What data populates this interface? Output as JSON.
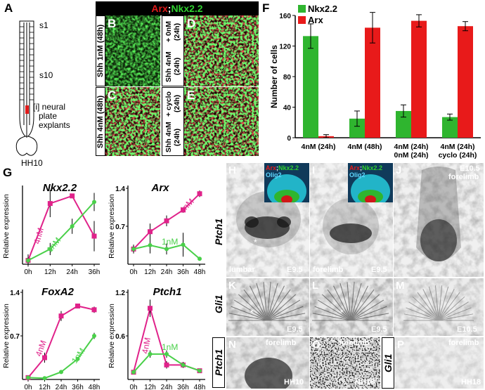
{
  "panel_letters": {
    "A": "A",
    "B": "B",
    "C": "C",
    "D": "D",
    "E": "E",
    "F": "F",
    "G": "G",
    "H": "H",
    "I": "I",
    "J": "J",
    "K": "K",
    "L": "L",
    "M": "M",
    "N": "N",
    "O": "O",
    "P": "P"
  },
  "panelA": {
    "s1": "s1",
    "s10": "s10",
    "explant_line1": "[i] neural",
    "explant_line2": "plate",
    "explant_line3": "explants",
    "stage": "HH10"
  },
  "header": {
    "arx": "Arx",
    "sep": ";",
    "nkx": "Nkx2.2"
  },
  "micro_labels": {
    "B": "Shh 1nM (48h)",
    "C": "Shh 4nM (48h)",
    "D_line1": "Shh 4nM (24h)",
    "D_line2": "+ 0nM (24h)",
    "E_line1": "Shh 4nM (24h)",
    "E_line2": "+ cyclo (24h)"
  },
  "chart_data": [
    {
      "type": "bar",
      "panel": "F",
      "categories": [
        "4nM (24h)",
        "4nM (48h)",
        "4nM (24h) 0nM (24h)",
        "4nM (24h) cyclo (24h)"
      ],
      "category_lines": [
        [
          "4nM (24h)"
        ],
        [
          "4nM (48h)"
        ],
        [
          "4nM (24h)",
          "0nM (24h)"
        ],
        [
          "4nM (24h)",
          "cyclo (24h)"
        ]
      ],
      "series": [
        {
          "name": "Nkx2.2",
          "color": "#2fb52f",
          "values": [
            133,
            25,
            35,
            27
          ],
          "errors": [
            16,
            10,
            8,
            4
          ]
        },
        {
          "name": "Arx",
          "color": "#e81a1a",
          "values": [
            2,
            144,
            153,
            146
          ],
          "errors": [
            2,
            20,
            8,
            6
          ]
        }
      ],
      "ylabel": "Number of cells",
      "ylim": [
        0,
        160
      ],
      "yticks": [
        0,
        40,
        80,
        120,
        160
      ],
      "legend": "top-left"
    },
    {
      "type": "line",
      "panel": "G",
      "gene": "Nkx2.2",
      "x": [
        "0h",
        "12h",
        "24h",
        "36h"
      ],
      "ylabel": "Relative expression",
      "ylim": [
        0,
        1.0
      ],
      "yticks": [],
      "series": [
        {
          "name": "4nM",
          "color": "#e0228a",
          "values": [
            0.05,
            0.8,
            0.9,
            0.37
          ],
          "errors": [
            0.08,
            0.18,
            0,
            0.2
          ]
        },
        {
          "name": "1nM",
          "color": "#49d049",
          "values": [
            0.05,
            0.2,
            0.5,
            0.82
          ],
          "errors": [
            0.08,
            0.08,
            0.1,
            0.12
          ]
        }
      ]
    },
    {
      "type": "line",
      "panel": "G",
      "gene": "Arx",
      "x": [
        "0h",
        "12h",
        "24h",
        "36h",
        "48h"
      ],
      "ylabel": "Relative expression",
      "ylim": [
        0,
        1.4
      ],
      "yticks": [
        "0.7",
        "1.4"
      ],
      "series": [
        {
          "name": "4nM",
          "color": "#e0228a",
          "values": [
            0.28,
            0.6,
            0.8,
            1.0,
            1.3
          ],
          "errors": [
            0.08,
            0.15,
            0.1,
            0.05,
            0.06
          ]
        },
        {
          "name": "1nM",
          "color": "#49d049",
          "values": [
            0.28,
            0.35,
            0.28,
            0.36,
            0.1
          ],
          "errors": [
            0.08,
            0.15,
            0.1,
            0.22,
            0
          ]
        }
      ]
    },
    {
      "type": "line",
      "panel": "G",
      "gene": "FoxA2",
      "x": [
        "0h",
        "12h",
        "24h",
        "36h",
        "48h"
      ],
      "ylabel": "Relative expression",
      "ylim": [
        0,
        1.4
      ],
      "yticks": [
        "0.7",
        "1.4"
      ],
      "series": [
        {
          "name": "4nM",
          "color": "#e0228a",
          "values": [
            0.03,
            0.35,
            1.02,
            1.18,
            1.12
          ],
          "errors": [
            0,
            0.08,
            0.08,
            0.04,
            0.05
          ]
        },
        {
          "name": "1nM",
          "color": "#49d049",
          "values": [
            0.03,
            0.02,
            0.12,
            0.33,
            0.7
          ],
          "errors": [
            0,
            0,
            0,
            0,
            0.05
          ]
        }
      ]
    },
    {
      "type": "line",
      "panel": "G",
      "gene": "Ptch1",
      "x": [
        "0h",
        "12h",
        "24h",
        "36h",
        "48h"
      ],
      "ylabel": "Relative expression",
      "ylim": [
        0,
        1.2
      ],
      "yticks": [
        "0.6",
        "1.2"
      ],
      "series": [
        {
          "name": "4nM",
          "color": "#e0228a",
          "values": [
            0.1,
            0.98,
            0.2,
            0.2,
            0.12
          ],
          "errors": [
            0,
            0.12,
            0.05,
            0.04,
            0.02
          ]
        },
        {
          "name": "1nM",
          "color": "#49d049",
          "values": [
            0.1,
            0.35,
            0.35,
            0.2,
            0.12
          ],
          "errors": [
            0,
            0.05,
            0.05,
            0.04,
            0.02
          ]
        }
      ]
    }
  ],
  "line_charts_common": {
    "ylabel": "Relative expression",
    "label_4nm": "4nM",
    "label_1nm": "1nM",
    "gene_nkx": "Nkx2.2",
    "gene_arx": "Arx",
    "gene_foxa2": "FoxA2",
    "gene_ptch1": "Ptch1"
  },
  "insets": {
    "arx": "Arx",
    "sep": ";",
    "nkx": "Nkx2.2",
    "olig2": "Olig2"
  },
  "row_labels": {
    "ptch1": "Ptch1",
    "gli1": "Gli1"
  },
  "captions": {
    "H_region": "lumbar",
    "H_stage": "E9.5",
    "I_region": "forelimb",
    "I_stage": "E9.5",
    "J_stage": "E10.5",
    "J_region": "forelimb",
    "K_stage": "E9.5",
    "L_stage": "E9.5",
    "M_stage": "E10.5",
    "N_region": "forelimb",
    "N_stage": "HH10",
    "O_region": "forelimb",
    "O_stage": "HH18",
    "P_region": "forelimb",
    "P_stage": "HH18",
    "asterisk": "*"
  }
}
